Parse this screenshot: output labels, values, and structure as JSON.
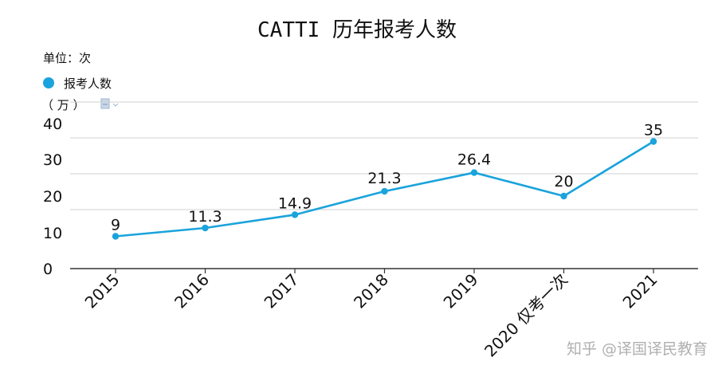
{
  "chart_data": {
    "type": "line",
    "title": "CATTI 历年报考人数",
    "unit_label": "单位：次",
    "y_unit": "（ 万 ）",
    "categories": [
      "2015",
      "2016",
      "2017",
      "2018",
      "2019",
      "2020 仅考一次",
      "2021"
    ],
    "series": [
      {
        "name": "报考人数",
        "values": [
          9,
          11.3,
          14.9,
          21.3,
          26.4,
          20,
          35
        ],
        "color": "#1aa3dc"
      }
    ],
    "data_labels": [
      "9",
      "11.3",
      "14.9",
      "21.3",
      "26.4",
      "20",
      "35"
    ],
    "yticks": [
      "0",
      "10",
      "20",
      "30",
      "40"
    ],
    "legend_position": "top-left",
    "grid": true
  },
  "watermark": "知乎 @译国译民教育",
  "icons": {
    "legend_marker": "filled-circle",
    "small_doc": "document-icon"
  }
}
